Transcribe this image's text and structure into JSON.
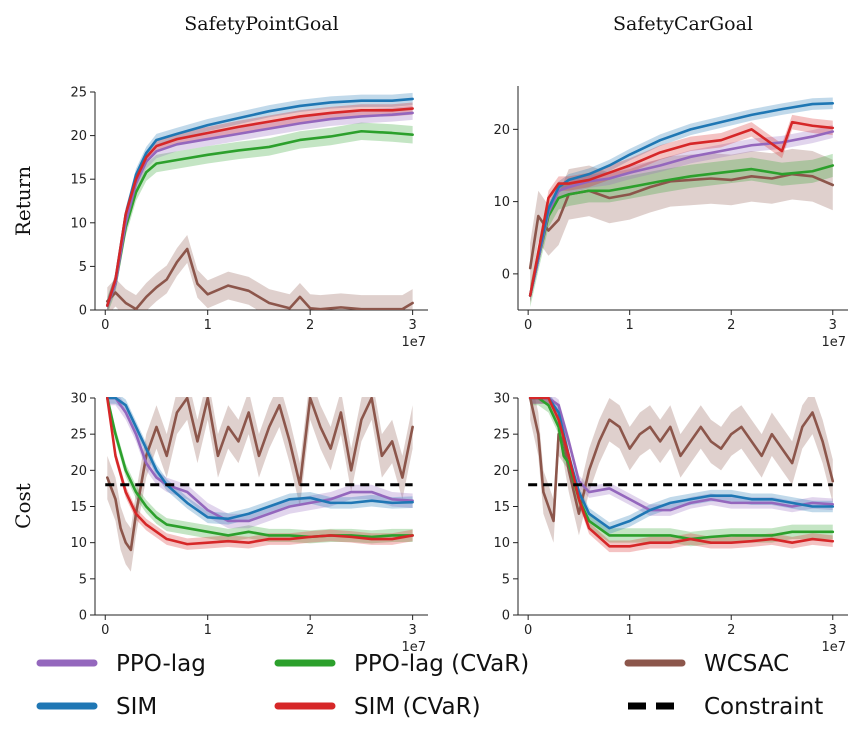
{
  "colors": {
    "PPO-lag": "#9467bd",
    "SIM": "#1f77b4",
    "PPO-lag (CVaR)": "#2ca02c",
    "SIM (CVaR)": "#d62728",
    "WCSAC": "#8c564b",
    "Constraint": "#000000"
  },
  "legend": {
    "items": [
      {
        "label": "PPO-lag",
        "color": "#9467bd",
        "style": "solid"
      },
      {
        "label": "PPO-lag (CVaR)",
        "color": "#2ca02c",
        "style": "solid"
      },
      {
        "label": "WCSAC",
        "color": "#8c564b",
        "style": "solid"
      },
      {
        "label": "SIM",
        "color": "#1f77b4",
        "style": "solid"
      },
      {
        "label": "SIM (CVaR)",
        "color": "#d62728",
        "style": "solid"
      },
      {
        "label": "Constraint",
        "color": "#000000",
        "style": "dashed"
      }
    ]
  },
  "chart_data": [
    {
      "type": "line",
      "title": "SafetyPointGoal",
      "ylabel": "Return",
      "x_multiplier_label": "1e7",
      "xlim": [
        -0.1,
        3.15
      ],
      "ylim": [
        0,
        25
      ],
      "xticks": [
        0,
        1,
        2,
        3
      ],
      "yticks": [
        0,
        5,
        10,
        15,
        20,
        25
      ],
      "grid": false,
      "series": [
        {
          "name": "PPO-lag",
          "x": [
            0.02,
            0.1,
            0.2,
            0.3,
            0.4,
            0.5,
            0.7,
            1.0,
            1.3,
            1.6,
            1.9,
            2.2,
            2.5,
            2.8,
            3.0
          ],
          "y": [
            0.5,
            3,
            10,
            14.5,
            17,
            18.2,
            19,
            19.6,
            20.2,
            20.8,
            21.4,
            21.9,
            22.2,
            22.4,
            22.6
          ],
          "band": 0.8
        },
        {
          "name": "SIM",
          "x": [
            0.02,
            0.1,
            0.2,
            0.3,
            0.4,
            0.5,
            0.7,
            1.0,
            1.3,
            1.6,
            1.9,
            2.2,
            2.5,
            2.8,
            3.0
          ],
          "y": [
            0.5,
            3.5,
            11,
            15.5,
            18,
            19.5,
            20.2,
            21.2,
            22,
            22.8,
            23.4,
            23.8,
            24,
            24,
            24.2
          ],
          "band": 0.7
        },
        {
          "name": "PPO-lag (CVaR)",
          "x": [
            0.02,
            0.1,
            0.2,
            0.3,
            0.4,
            0.5,
            0.7,
            1.0,
            1.3,
            1.6,
            1.9,
            2.2,
            2.5,
            2.8,
            3.0
          ],
          "y": [
            0.5,
            3,
            9.5,
            13.5,
            15.8,
            16.8,
            17.2,
            17.8,
            18.3,
            18.7,
            19.5,
            19.9,
            20.5,
            20.3,
            20.1
          ],
          "band": 1.0
        },
        {
          "name": "SIM (CVaR)",
          "x": [
            0.02,
            0.1,
            0.2,
            0.3,
            0.4,
            0.5,
            0.7,
            1.0,
            1.3,
            1.6,
            1.9,
            2.2,
            2.5,
            2.8,
            3.0
          ],
          "y": [
            0.5,
            3.5,
            11,
            15,
            17.5,
            18.8,
            19.6,
            20.3,
            21,
            21.6,
            22.2,
            22.6,
            22.9,
            22.9,
            23.1
          ],
          "band": 0.7
        },
        {
          "name": "WCSAC",
          "x": [
            0.02,
            0.1,
            0.2,
            0.3,
            0.4,
            0.5,
            0.6,
            0.7,
            0.8,
            0.9,
            1.0,
            1.2,
            1.4,
            1.6,
            1.8,
            1.9,
            2.0,
            2.1,
            2.3,
            2.5,
            2.7,
            2.9,
            3.0
          ],
          "y": [
            1,
            2,
            0.8,
            0.1,
            1.5,
            2.6,
            3.5,
            5.5,
            7,
            3,
            1.8,
            2.8,
            2.2,
            0.8,
            0.2,
            1.5,
            0.2,
            0.1,
            0.3,
            0.1,
            0.1,
            0.1,
            0.8
          ],
          "band": 1.6
        }
      ]
    },
    {
      "type": "line",
      "title": "SafetyCarGoal",
      "ylabel": "",
      "x_multiplier_label": "1e7",
      "xlim": [
        -0.1,
        3.15
      ],
      "ylim": [
        -5,
        26
      ],
      "xticks": [
        0,
        1,
        2,
        3
      ],
      "yticks": [
        0,
        10,
        20
      ],
      "grid": false,
      "series": [
        {
          "name": "PPO-lag",
          "x": [
            0.02,
            0.1,
            0.2,
            0.3,
            0.4,
            0.6,
            0.8,
            1.0,
            1.3,
            1.6,
            1.9,
            2.2,
            2.5,
            2.8,
            3.0
          ],
          "y": [
            -3,
            2,
            8.5,
            11.5,
            12,
            12.8,
            13.2,
            14,
            15,
            16.2,
            17,
            17.8,
            18.2,
            19,
            19.7
          ],
          "band": 0.9
        },
        {
          "name": "SIM",
          "x": [
            0.02,
            0.1,
            0.2,
            0.3,
            0.4,
            0.6,
            0.8,
            1.0,
            1.3,
            1.6,
            1.9,
            2.2,
            2.5,
            2.8,
            3.0
          ],
          "y": [
            -3,
            2.5,
            9,
            12,
            13,
            13.8,
            15,
            16.5,
            18.5,
            20,
            21,
            22,
            22.8,
            23.5,
            23.6
          ],
          "band": 0.8
        },
        {
          "name": "PPO-lag (CVaR)",
          "x": [
            0.02,
            0.1,
            0.2,
            0.3,
            0.4,
            0.6,
            0.8,
            1.0,
            1.3,
            1.6,
            1.9,
            2.2,
            2.5,
            2.8,
            3.0
          ],
          "y": [
            -3,
            2,
            8,
            10.5,
            11,
            11.5,
            11.5,
            12,
            12.8,
            13.5,
            14,
            14.5,
            13.8,
            14.2,
            15
          ],
          "band": 1.6
        },
        {
          "name": "SIM (CVaR)",
          "x": [
            0.02,
            0.1,
            0.2,
            0.3,
            0.4,
            0.6,
            0.8,
            1.0,
            1.3,
            1.6,
            1.9,
            2.2,
            2.4,
            2.5,
            2.6,
            2.8,
            3.0
          ],
          "y": [
            -3,
            3,
            10.5,
            12.5,
            12.5,
            13,
            14,
            15,
            16.8,
            18,
            18.5,
            20,
            18,
            17,
            21,
            20.5,
            20.2
          ],
          "band": 1.0
        },
        {
          "name": "WCSAC",
          "x": [
            0.02,
            0.1,
            0.2,
            0.3,
            0.4,
            0.6,
            0.8,
            1.0,
            1.2,
            1.4,
            1.6,
            1.8,
            2.0,
            2.2,
            2.4,
            2.6,
            2.8,
            3.0
          ],
          "y": [
            0.8,
            8,
            6,
            7.5,
            11,
            11.5,
            10.5,
            11,
            12,
            12.8,
            13,
            13.2,
            13,
            13.5,
            13.2,
            13.8,
            13.5,
            12.3
          ],
          "band": 3.5
        }
      ]
    },
    {
      "type": "line",
      "title": "",
      "ylabel": "Cost",
      "x_multiplier_label": "1e7",
      "xlim": [
        -0.1,
        3.15
      ],
      "ylim": [
        0,
        30
      ],
      "xticks": [
        0,
        1,
        2,
        3
      ],
      "yticks": [
        0,
        5,
        10,
        15,
        20,
        25,
        30
      ],
      "grid": false,
      "series": [
        {
          "name": "PPO-lag",
          "x": [
            0.02,
            0.1,
            0.2,
            0.3,
            0.4,
            0.5,
            0.6,
            0.8,
            1.0,
            1.2,
            1.4,
            1.6,
            1.8,
            2.0,
            2.2,
            2.4,
            2.6,
            2.8,
            3.0
          ],
          "y": [
            30,
            30,
            28,
            25,
            21,
            19,
            18,
            17,
            14.5,
            13,
            13,
            14,
            15,
            15.5,
            16,
            17,
            17,
            16,
            15.8
          ],
          "band": 1.0
        },
        {
          "name": "SIM",
          "x": [
            0.02,
            0.1,
            0.2,
            0.3,
            0.4,
            0.5,
            0.6,
            0.8,
            1.0,
            1.2,
            1.4,
            1.6,
            1.8,
            2.0,
            2.2,
            2.4,
            2.6,
            2.8,
            3.0
          ],
          "y": [
            30,
            30,
            29,
            26,
            23,
            20,
            18,
            15.5,
            13.5,
            13.3,
            14,
            15,
            16,
            16.2,
            15.5,
            15.5,
            15.8,
            15.5,
            15.6
          ],
          "band": 0.8
        },
        {
          "name": "PPO-lag (CVaR)",
          "x": [
            0.02,
            0.1,
            0.2,
            0.3,
            0.4,
            0.5,
            0.6,
            0.8,
            1.0,
            1.2,
            1.4,
            1.6,
            1.8,
            2.0,
            2.2,
            2.4,
            2.6,
            2.8,
            3.0
          ],
          "y": [
            30,
            25,
            20,
            17,
            15,
            13.5,
            12.5,
            12,
            11.5,
            11,
            11.5,
            11,
            11,
            10.8,
            11,
            11,
            10.8,
            11,
            11
          ],
          "band": 0.9
        },
        {
          "name": "SIM (CVaR)",
          "x": [
            0.02,
            0.1,
            0.2,
            0.3,
            0.4,
            0.5,
            0.6,
            0.8,
            1.0,
            1.2,
            1.4,
            1.6,
            1.8,
            2.0,
            2.2,
            2.4,
            2.6,
            2.8,
            3.0
          ],
          "y": [
            30,
            22,
            17,
            14,
            12.5,
            11.5,
            10.5,
            9.8,
            10,
            10.2,
            10,
            10.5,
            10.5,
            10.8,
            11,
            10.8,
            10.5,
            10.5,
            11
          ],
          "band": 0.8
        },
        {
          "name": "WCSAC",
          "x": [
            0.02,
            0.1,
            0.15,
            0.2,
            0.25,
            0.3,
            0.4,
            0.5,
            0.6,
            0.7,
            0.8,
            0.9,
            1.0,
            1.1,
            1.2,
            1.3,
            1.4,
            1.5,
            1.6,
            1.7,
            1.8,
            1.9,
            2.0,
            2.1,
            2.2,
            2.3,
            2.4,
            2.5,
            2.6,
            2.7,
            2.8,
            2.9,
            3.0
          ],
          "y": [
            19,
            16,
            12,
            10,
            9,
            14,
            22,
            26,
            22,
            28,
            30,
            24,
            30,
            22,
            26,
            24,
            28,
            22,
            26,
            29,
            24,
            18,
            30,
            26,
            23,
            28,
            20,
            27,
            30,
            22,
            24,
            19,
            26
          ],
          "band": 3.0
        },
        {
          "name": "Constraint",
          "x": [
            0,
            3.0
          ],
          "y": [
            18,
            18
          ],
          "dashed": true
        }
      ]
    },
    {
      "type": "line",
      "title": "",
      "ylabel": "",
      "x_multiplier_label": "1e7",
      "xlim": [
        -0.1,
        3.15
      ],
      "ylim": [
        0,
        30
      ],
      "xticks": [
        0,
        1,
        2,
        3
      ],
      "yticks": [
        0,
        5,
        10,
        15,
        20,
        25,
        30
      ],
      "grid": false,
      "series": [
        {
          "name": "PPO-lag",
          "x": [
            0.02,
            0.1,
            0.2,
            0.3,
            0.4,
            0.5,
            0.6,
            0.8,
            1.0,
            1.2,
            1.4,
            1.6,
            1.8,
            2.0,
            2.2,
            2.4,
            2.6,
            2.8,
            3.0
          ],
          "y": [
            30,
            30,
            30,
            29,
            24,
            18.5,
            17,
            17.5,
            16,
            14.5,
            14.5,
            15.5,
            16,
            15.5,
            15.5,
            15.5,
            15,
            15.5,
            15.3
          ],
          "band": 0.8
        },
        {
          "name": "SIM",
          "x": [
            0.02,
            0.1,
            0.2,
            0.3,
            0.4,
            0.5,
            0.6,
            0.8,
            1.0,
            1.2,
            1.4,
            1.6,
            1.8,
            2.0,
            2.2,
            2.4,
            2.6,
            2.8,
            3.0
          ],
          "y": [
            30,
            30,
            30,
            28,
            22,
            17,
            14,
            12,
            13,
            14.5,
            15.5,
            16,
            16.5,
            16.5,
            16,
            16,
            15.5,
            15,
            15
          ],
          "band": 0.8
        },
        {
          "name": "PPO-lag (CVaR)",
          "x": [
            0.02,
            0.1,
            0.2,
            0.3,
            0.35,
            0.4,
            0.5,
            0.6,
            0.8,
            1.0,
            1.2,
            1.4,
            1.6,
            1.8,
            2.0,
            2.2,
            2.4,
            2.6,
            2.8,
            3.0
          ],
          "y": [
            30,
            30,
            29,
            26,
            22,
            21,
            16,
            13,
            11,
            11,
            11,
            11,
            10.5,
            10.8,
            11,
            11,
            11,
            11.5,
            11.5,
            11.5
          ],
          "band": 1.0
        },
        {
          "name": "SIM (CVaR)",
          "x": [
            0.02,
            0.1,
            0.2,
            0.3,
            0.4,
            0.5,
            0.6,
            0.8,
            1.0,
            1.2,
            1.4,
            1.6,
            1.8,
            2.0,
            2.2,
            2.4,
            2.6,
            2.8,
            3.0
          ],
          "y": [
            30,
            30,
            30,
            27,
            22,
            16,
            12,
            9.5,
            9.5,
            10,
            10,
            10.5,
            10,
            10,
            10.2,
            10.5,
            10,
            10.5,
            10.2
          ],
          "band": 0.8
        },
        {
          "name": "WCSAC",
          "x": [
            0.02,
            0.1,
            0.15,
            0.2,
            0.25,
            0.3,
            0.35,
            0.4,
            0.5,
            0.6,
            0.7,
            0.8,
            0.9,
            1.0,
            1.1,
            1.2,
            1.3,
            1.4,
            1.5,
            1.6,
            1.7,
            1.8,
            1.9,
            2.0,
            2.1,
            2.2,
            2.3,
            2.4,
            2.5,
            2.6,
            2.7,
            2.8,
            2.9,
            3.0
          ],
          "y": [
            30,
            25,
            17,
            15,
            13,
            25,
            24,
            20,
            14,
            20,
            24,
            27,
            26,
            23,
            25,
            26,
            24,
            26,
            22,
            24,
            26,
            24,
            23,
            25,
            26,
            24,
            22,
            25,
            23,
            21,
            26,
            28,
            24,
            18.5
          ],
          "band": 3.0
        },
        {
          "name": "Constraint",
          "x": [
            0,
            3.0
          ],
          "y": [
            18,
            18
          ],
          "dashed": true
        }
      ]
    }
  ]
}
